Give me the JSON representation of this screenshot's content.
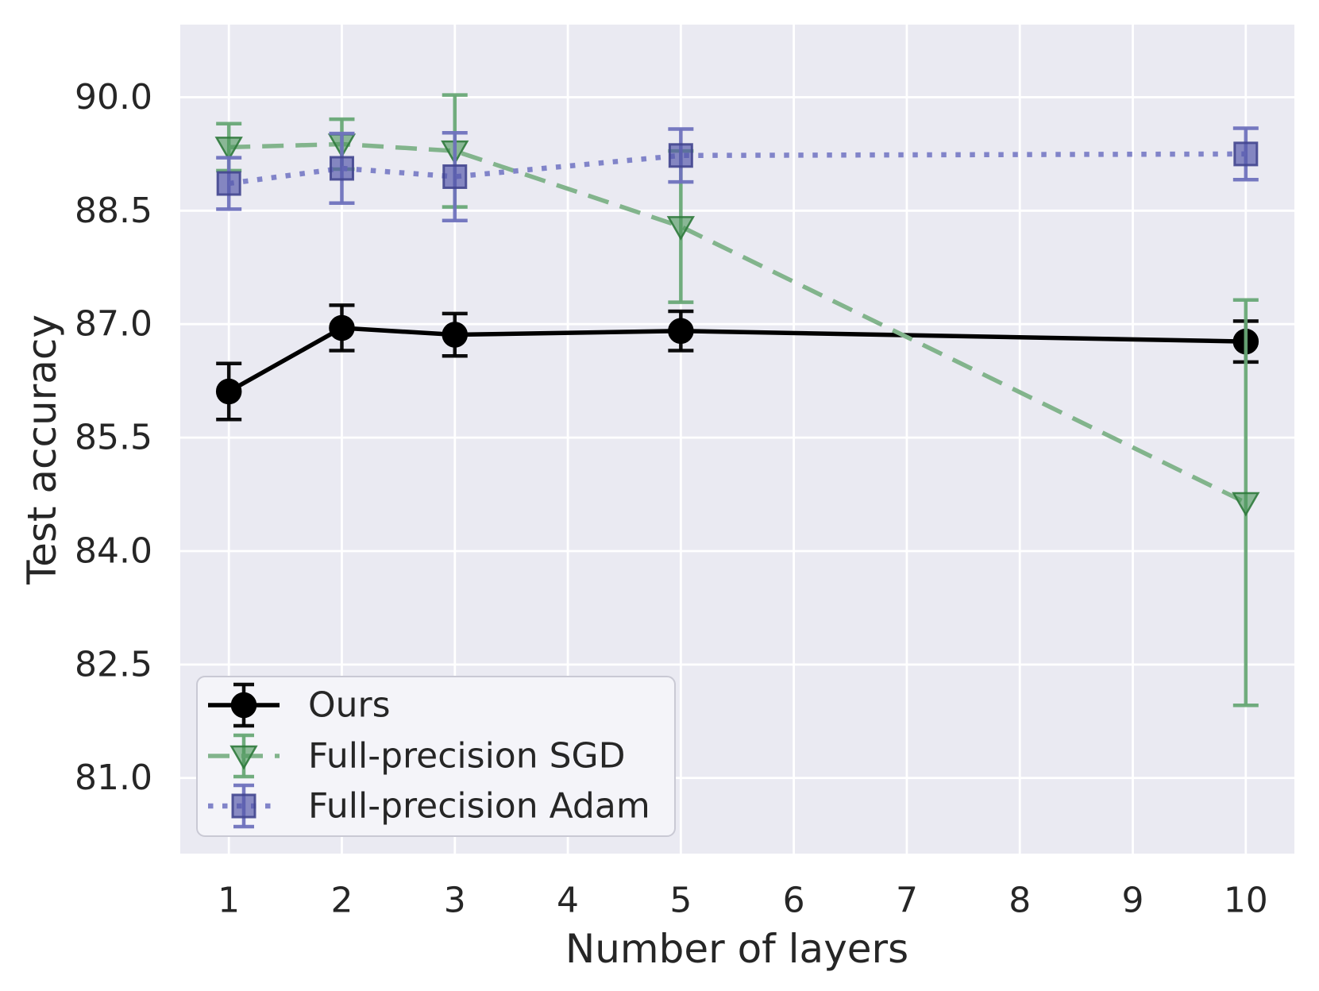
{
  "figure": {
    "background_color": "#ffffff",
    "plot_background_color": "#eaeaf2",
    "grid_color": "#ffffff",
    "text_color": "#262626"
  },
  "chart_data": {
    "type": "line",
    "title": "",
    "xlabel": "Number of layers",
    "ylabel": "Test accuracy",
    "grid": true,
    "legend_position": "lower left",
    "x": [
      1,
      2,
      3,
      5,
      10
    ],
    "xtick_values": [
      1,
      2,
      3,
      4,
      5,
      6,
      7,
      8,
      9,
      10
    ],
    "xtick_labels": [
      "1",
      "2",
      "3",
      "4",
      "5",
      "6",
      "7",
      "8",
      "9",
      "10"
    ],
    "ytick_values": [
      81.0,
      82.5,
      84.0,
      85.5,
      87.0,
      88.5,
      90.0
    ],
    "ytick_labels": [
      "81.0",
      "82.5",
      "84.0",
      "85.5",
      "87.0",
      "88.5",
      "90.0"
    ],
    "xlim": [
      0.57,
      10.43
    ],
    "ylim": [
      80.0,
      90.96
    ],
    "series": [
      {
        "name": "Ours",
        "marker": "circle",
        "linestyle": "solid",
        "color": "#000000",
        "line_color": "#000000",
        "err_color": "#000000",
        "edge_color": "#000000",
        "fill_opacity": 1.0,
        "values": [
          86.11,
          86.95,
          86.86,
          86.91,
          86.77
        ],
        "errors": [
          0.37,
          0.3,
          0.28,
          0.26,
          0.27
        ]
      },
      {
        "name": "Full-precision SGD",
        "marker": "triangle-down",
        "linestyle": "dashed",
        "color": "#4a9458",
        "line_color": "#82b48c",
        "err_color": "#68a876",
        "edge_color": "#2f7a3c",
        "fill_opacity": 0.6,
        "values": [
          89.34,
          89.38,
          89.29,
          88.29,
          84.64
        ],
        "errors": [
          0.31,
          0.33,
          0.74,
          1.0,
          2.68
        ]
      },
      {
        "name": "Full-precision Adam",
        "marker": "square",
        "linestyle": "dotted",
        "color": "#5457a9",
        "line_color": "#8184c9",
        "err_color": "#6f72bd",
        "edge_color": "#43468f",
        "fill_opacity": 0.68,
        "values": [
          88.86,
          89.06,
          88.95,
          89.23,
          89.25
        ],
        "errors": [
          0.34,
          0.46,
          0.58,
          0.35,
          0.34
        ]
      }
    ]
  }
}
